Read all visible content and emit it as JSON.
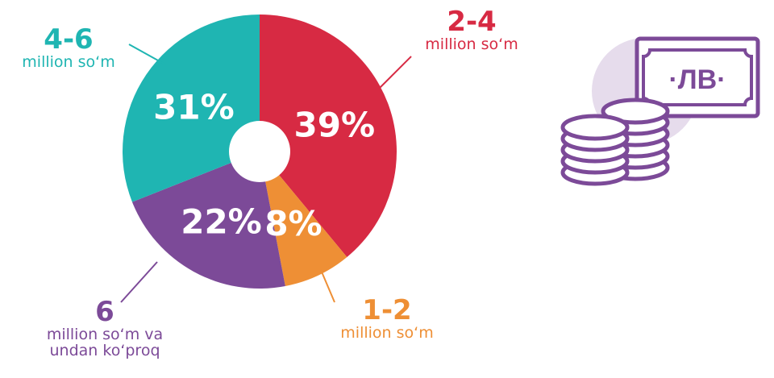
{
  "chart_data": {
    "type": "pie",
    "donut": true,
    "slices": [
      {
        "range": "2-4",
        "unit": "million so‘m",
        "value": 39,
        "label": "39%",
        "color": "#d72a43"
      },
      {
        "range": "1-2",
        "unit": "million so‘m",
        "value": 8,
        "label": "8%",
        "color": "#ee8f35"
      },
      {
        "range": "6",
        "unit": "million so‘m va\nundan ko‘proq",
        "value": 22,
        "label": "22%",
        "color": "#7c4a98"
      },
      {
        "range": "4-6",
        "unit": "million so‘m",
        "value": 31,
        "label": "31%",
        "color": "#1fb5b2"
      }
    ]
  },
  "icon": {
    "name": "money-icon",
    "currency_label": "·ЛВ·",
    "color": "#7c4a98",
    "bg_color": "#e6dcec"
  }
}
